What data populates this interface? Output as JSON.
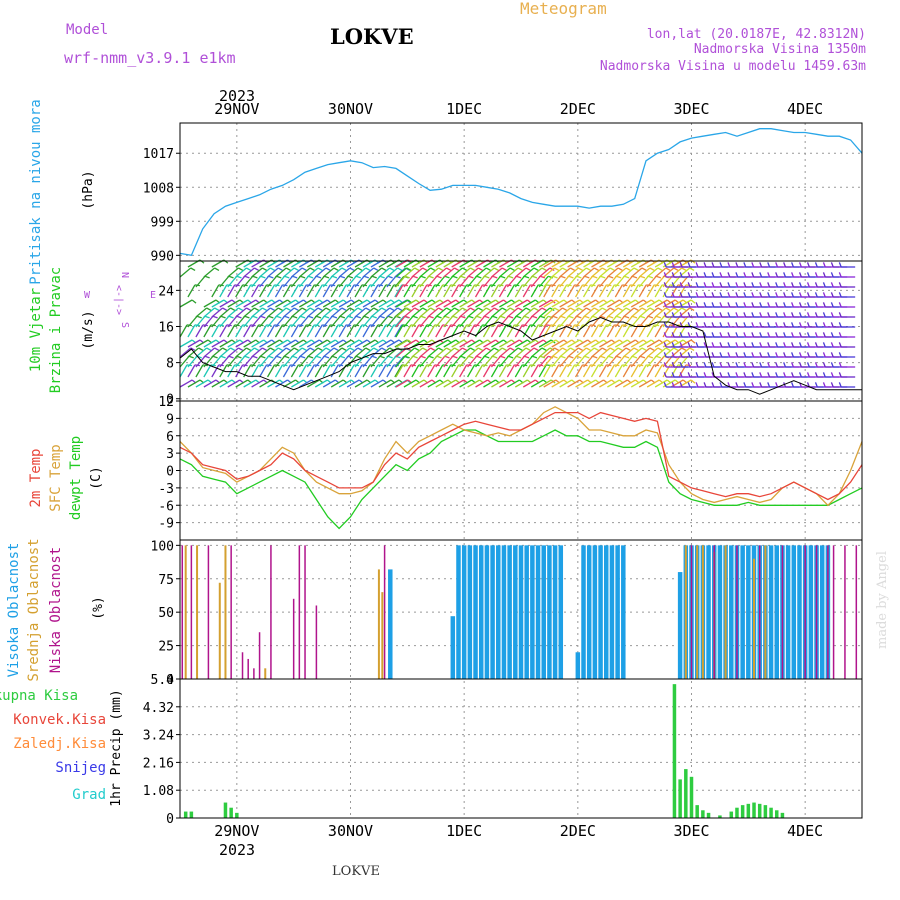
{
  "header": {
    "model_label": "Model",
    "model_name": "wrf-nmm_v3.9.1  e1km",
    "station": "LOKVE",
    "meteogram": "Meteogram",
    "lonlat": "lon,lat (20.0187E, 42.8312N)",
    "elev": "Nadmorska Visina 1350m",
    "elev_model": "Nadmorska Visina u modelu 1459.63m"
  },
  "footer": {
    "station": "LOKVE",
    "credit": "made by Angel"
  },
  "colors": {
    "pressure": "#2aa6e8",
    "temp2m": "#e8463a",
    "sfc": "#d9a33a",
    "dewpt": "#22cc22",
    "cloud_high": "#1ea0e6",
    "cloud_mid": "#d4a030",
    "cloud_low": "#b0148c",
    "precip_total": "#2ecc40",
    "precip_conv": "#e8463a",
    "precip_frz": "#ff8c3a",
    "snow": "#3a3ae8",
    "hail": "#22cccc",
    "speed": "#000000"
  },
  "time_axis": {
    "year": "2023",
    "days": [
      "29NOV",
      "30NOV",
      "1DEC",
      "2DEC",
      "3DEC",
      "4DEC"
    ],
    "range_days": [
      -0.5,
      5.5
    ]
  },
  "chart_data": [
    {
      "type": "line",
      "ylabel_lines": [
        "Pritisak na nivou mora",
        "(hPa)"
      ],
      "yticks": [
        "990",
        "999",
        "1008",
        "1017"
      ],
      "ylim": [
        988.5,
        1025
      ],
      "series": [
        {
          "key": "pressure",
          "x": [
            -0.5,
            -0.4,
            -0.3,
            -0.2,
            -0.1,
            0.0,
            0.1,
            0.2,
            0.3,
            0.4,
            0.5,
            0.6,
            0.7,
            0.8,
            0.9,
            1.0,
            1.1,
            1.2,
            1.3,
            1.4,
            1.5,
            1.6,
            1.7,
            1.8,
            1.9,
            2.0,
            2.1,
            2.2,
            2.3,
            2.4,
            2.5,
            2.6,
            2.7,
            2.8,
            2.9,
            3.0,
            3.1,
            3.2,
            3.3,
            3.4,
            3.5,
            3.6,
            3.7,
            3.8,
            3.85,
            3.9,
            4.0,
            4.1,
            4.2,
            4.3,
            4.4,
            4.5,
            4.6,
            4.7,
            4.8,
            4.9,
            5.0,
            5.1,
            5.2,
            5.3,
            5.4,
            5.5
          ],
          "y": [
            990.5,
            990,
            997,
            1001,
            1003,
            1004,
            1005,
            1006,
            1007.5,
            1008.5,
            1010,
            1012,
            1013,
            1014,
            1014.5,
            1015,
            1014.5,
            1013.2,
            1013.5,
            1013,
            1011,
            1009,
            1007.2,
            1007.5,
            1008.5,
            1008.5,
            1008.5,
            1008,
            1007.5,
            1006.5,
            1005,
            1004,
            1003.5,
            1003,
            1003,
            1003,
            1002.5,
            1003,
            1003,
            1003.5,
            1005,
            1015,
            1017,
            1018,
            1019,
            1020,
            1021,
            1021.5,
            1022,
            1022.5,
            1021.5,
            1022.5,
            1023.5,
            1023.5,
            1023,
            1022.5,
            1022.5,
            1022,
            1021.5,
            1021.5,
            1020.5,
            1017
          ]
        }
      ]
    },
    {
      "type": "line",
      "ylabel_lines": [
        "10m Vjetar",
        "Brzina i Pravac",
        "(m/s)"
      ],
      "yticks": [
        "0",
        "8",
        "16",
        "24"
      ],
      "ylim": [
        -0.5,
        30.5
      ],
      "direction_legend": [
        "N",
        "<-|->",
        "E",
        "W",
        "S"
      ],
      "series": [
        {
          "key": "speed",
          "x": [
            -0.5,
            -0.4,
            -0.3,
            -0.2,
            -0.1,
            0.0,
            0.1,
            0.2,
            0.3,
            0.4,
            0.5,
            0.6,
            0.7,
            0.8,
            0.9,
            1.0,
            1.1,
            1.2,
            1.3,
            1.4,
            1.5,
            1.6,
            1.7,
            1.8,
            1.9,
            2.0,
            2.1,
            2.2,
            2.3,
            2.4,
            2.5,
            2.6,
            2.7,
            2.8,
            2.9,
            3.0,
            3.1,
            3.2,
            3.3,
            3.4,
            3.5,
            3.6,
            3.7,
            3.8,
            3.9,
            4.0,
            4.1,
            4.2,
            4.3,
            4.4,
            4.5,
            4.6,
            4.7,
            4.8,
            4.9,
            5.0,
            5.1,
            5.2,
            5.3,
            5.4,
            5.5
          ],
          "y": [
            9,
            11,
            8,
            7,
            6,
            6,
            5,
            5,
            4,
            3,
            2,
            3,
            4,
            5,
            6,
            8,
            9,
            10,
            10,
            11,
            11,
            12,
            12,
            13,
            14,
            15,
            14,
            16,
            17,
            16,
            15,
            13,
            14,
            15,
            16,
            15,
            17,
            18,
            17,
            17,
            16,
            16,
            17,
            17,
            16,
            16,
            15,
            5,
            3,
            2,
            2,
            1,
            2,
            3,
            4,
            3,
            2,
            2,
            2,
            2,
            2
          ]
        }
      ]
    },
    {
      "type": "line",
      "ylabel_lines": [
        "2m Temp",
        "SFC Temp",
        "dewpt Temp",
        "(C)"
      ],
      "yticks": [
        "-9",
        "-6",
        "-3",
        "0",
        "3",
        "6",
        "9",
        "12"
      ],
      "ylim": [
        -12,
        12
      ],
      "series": [
        {
          "key": "temp2m",
          "x": [
            -0.5,
            -0.4,
            -0.3,
            -0.2,
            -0.1,
            0.0,
            0.1,
            0.2,
            0.3,
            0.4,
            0.5,
            0.6,
            0.7,
            0.8,
            0.9,
            1.0,
            1.1,
            1.2,
            1.3,
            1.4,
            1.5,
            1.6,
            1.7,
            1.8,
            1.9,
            2.0,
            2.1,
            2.2,
            2.3,
            2.4,
            2.5,
            2.6,
            2.7,
            2.8,
            2.9,
            3.0,
            3.1,
            3.2,
            3.3,
            3.4,
            3.5,
            3.6,
            3.7,
            3.8,
            3.9,
            4.0,
            4.1,
            4.2,
            4.3,
            4.4,
            4.5,
            4.6,
            4.7,
            4.8,
            4.9,
            5.0,
            5.1,
            5.2,
            5.3,
            5.4,
            5.5
          ],
          "y": [
            4,
            3,
            1,
            0.5,
            0,
            -1.5,
            -1,
            0,
            1,
            3,
            2,
            0,
            -1,
            -2,
            -3,
            -3,
            -3,
            -2,
            1,
            3,
            2,
            4,
            5,
            6,
            7,
            8,
            8.5,
            8,
            7.5,
            7,
            7,
            8,
            9,
            10,
            10,
            10,
            9,
            10,
            9.5,
            9,
            8.5,
            9,
            8.5,
            -1,
            -2,
            -3,
            -3.5,
            -4,
            -4.5,
            -4,
            -4,
            -4.5,
            -4,
            -3,
            -2,
            -3,
            -4,
            -5,
            -4,
            -2,
            1
          ]
        },
        {
          "key": "sfc",
          "x": [
            -0.5,
            -0.4,
            -0.3,
            -0.2,
            -0.1,
            0.0,
            0.1,
            0.2,
            0.3,
            0.4,
            0.5,
            0.6,
            0.7,
            0.8,
            0.9,
            1.0,
            1.1,
            1.2,
            1.3,
            1.4,
            1.5,
            1.6,
            1.7,
            1.8,
            1.9,
            2.0,
            2.1,
            2.2,
            2.3,
            2.4,
            2.5,
            2.6,
            2.7,
            2.8,
            2.9,
            3.0,
            3.1,
            3.2,
            3.3,
            3.4,
            3.5,
            3.6,
            3.7,
            3.8,
            3.9,
            4.0,
            4.1,
            4.2,
            4.3,
            4.4,
            4.5,
            4.6,
            4.7,
            4.8,
            4.9,
            5.0,
            5.1,
            5.2,
            5.3,
            5.4,
            5.5
          ],
          "y": [
            5,
            3,
            0.5,
            0,
            -0.5,
            -2,
            -1,
            0,
            2,
            4,
            3,
            0,
            -2,
            -3,
            -4,
            -4,
            -3.5,
            -2,
            2,
            5,
            3,
            5,
            6,
            7,
            8,
            7,
            6.5,
            6,
            6.5,
            6,
            7,
            8,
            10,
            11,
            10,
            9,
            7,
            7,
            6.5,
            6,
            6,
            7,
            6.5,
            1,
            -2,
            -4,
            -5,
            -5.5,
            -5,
            -4.5,
            -5,
            -5.5,
            -5,
            -3,
            -2,
            -3,
            -4,
            -6,
            -4,
            0,
            5
          ]
        },
        {
          "key": "dewpt",
          "x": [
            -0.5,
            -0.4,
            -0.3,
            -0.2,
            -0.1,
            0.0,
            0.1,
            0.2,
            0.3,
            0.4,
            0.5,
            0.6,
            0.7,
            0.8,
            0.9,
            1.0,
            1.1,
            1.2,
            1.3,
            1.4,
            1.5,
            1.6,
            1.7,
            1.8,
            1.9,
            2.0,
            2.1,
            2.2,
            2.3,
            2.4,
            2.5,
            2.6,
            2.7,
            2.8,
            2.9,
            3.0,
            3.1,
            3.2,
            3.3,
            3.4,
            3.5,
            3.6,
            3.7,
            3.8,
            3.9,
            4.0,
            4.1,
            4.2,
            4.3,
            4.4,
            4.5,
            4.6,
            4.7,
            4.8,
            4.9,
            5.0,
            5.1,
            5.2,
            5.3,
            5.4,
            5.5
          ],
          "y": [
            2,
            1,
            -1,
            -1.5,
            -2,
            -4,
            -3,
            -2,
            -1,
            0,
            -1,
            -2,
            -5,
            -8,
            -10,
            -8,
            -5,
            -3,
            -1,
            1,
            0,
            2,
            3,
            5,
            6,
            7,
            7,
            6,
            5,
            5,
            5,
            5,
            6,
            7,
            6,
            6,
            5,
            5,
            4.5,
            4,
            4,
            5,
            4,
            -2,
            -4,
            -5,
            -5.5,
            -6,
            -6,
            -6,
            -5.5,
            -6,
            -6,
            -6,
            -6,
            -6,
            -6,
            -6,
            -5,
            -4,
            -3
          ]
        }
      ]
    },
    {
      "type": "bar",
      "ylabel_lines": [
        "Visoka Oblacnost",
        "Srednja Oblacnost",
        "Niska Oblacnost",
        "(%)"
      ],
      "yticks": [
        "0",
        "25",
        "50",
        "75",
        "100"
      ],
      "ylim": [
        0,
        104
      ],
      "series": [
        {
          "key": "cloud_high",
          "x": [
            1.35,
            1.9,
            1.95,
            2.0,
            2.05,
            2.1,
            2.15,
            2.2,
            2.25,
            2.3,
            2.35,
            2.4,
            2.45,
            2.5,
            2.55,
            2.6,
            2.65,
            2.7,
            2.75,
            2.8,
            2.85,
            3.0,
            3.05,
            3.1,
            3.15,
            3.2,
            3.25,
            3.3,
            3.35,
            3.4,
            3.9,
            3.95,
            4.0,
            4.05,
            4.1,
            4.15,
            4.2,
            4.25,
            4.3,
            4.35,
            4.4,
            4.45,
            4.5,
            4.55,
            4.6,
            4.65,
            4.7,
            4.75,
            4.8,
            4.85,
            4.9,
            4.95,
            5.0,
            5.05,
            5.1,
            5.15,
            5.2
          ],
          "y": [
            82,
            47,
            100,
            100,
            100,
            100,
            100,
            100,
            100,
            100,
            100,
            100,
            100,
            100,
            100,
            100,
            100,
            100,
            100,
            100,
            100,
            20,
            100,
            100,
            100,
            100,
            100,
            100,
            100,
            100,
            80,
            100,
            100,
            100,
            100,
            100,
            100,
            100,
            100,
            100,
            100,
            100,
            100,
            100,
            100,
            100,
            100,
            100,
            100,
            100,
            100,
            100,
            100,
            100,
            100,
            100,
            100
          ]
        },
        {
          "key": "cloud_mid",
          "x": [
            -0.45,
            -0.35,
            -0.15,
            -0.1,
            0.25,
            1.25,
            1.28,
            3.95,
            4.05,
            4.1,
            4.2,
            4.3,
            4.55,
            4.65
          ],
          "y": [
            100,
            100,
            72,
            100,
            8,
            82,
            65,
            100,
            100,
            100,
            95,
            100,
            90,
            100
          ]
        },
        {
          "key": "cloud_low",
          "x": [
            -0.48,
            -0.4,
            -0.25,
            -0.05,
            0.05,
            0.1,
            0.15,
            0.2,
            0.3,
            0.5,
            0.55,
            0.6,
            0.7,
            1.3,
            4.0,
            4.2,
            4.4,
            4.6,
            4.8,
            5.0,
            5.1,
            5.2,
            5.25,
            5.35,
            5.45
          ],
          "y": [
            100,
            100,
            100,
            100,
            20,
            15,
            8,
            35,
            100,
            60,
            100,
            100,
            55,
            100,
            100,
            100,
            100,
            100,
            100,
            100,
            100,
            100,
            100,
            100,
            100
          ]
        }
      ]
    },
    {
      "type": "bar",
      "ylabel_lines": [
        "Ukupna  Kisa",
        "Konvek.Kisa",
        "Zaledj.Kisa",
        "Snijeg",
        "Grad",
        "1hr Precip (mm)"
      ],
      "yticks": [
        "0",
        "1.08",
        "2.16",
        "3.24",
        "4.32",
        "5.4"
      ],
      "ylim": [
        0,
        5.4
      ],
      "series": [
        {
          "key": "precip_total",
          "x": [
            -0.45,
            -0.4,
            -0.1,
            -0.05,
            0.0,
            3.85,
            3.9,
            3.95,
            4.0,
            4.05,
            4.1,
            4.15,
            4.25,
            4.35,
            4.4,
            4.45,
            4.5,
            4.55,
            4.6,
            4.65,
            4.7,
            4.75,
            4.8
          ],
          "y": [
            0.25,
            0.25,
            0.6,
            0.4,
            0.2,
            5.2,
            1.5,
            1.9,
            1.6,
            0.5,
            0.3,
            0.2,
            0.1,
            0.25,
            0.4,
            0.5,
            0.55,
            0.6,
            0.55,
            0.5,
            0.4,
            0.3,
            0.2
          ]
        }
      ]
    }
  ]
}
